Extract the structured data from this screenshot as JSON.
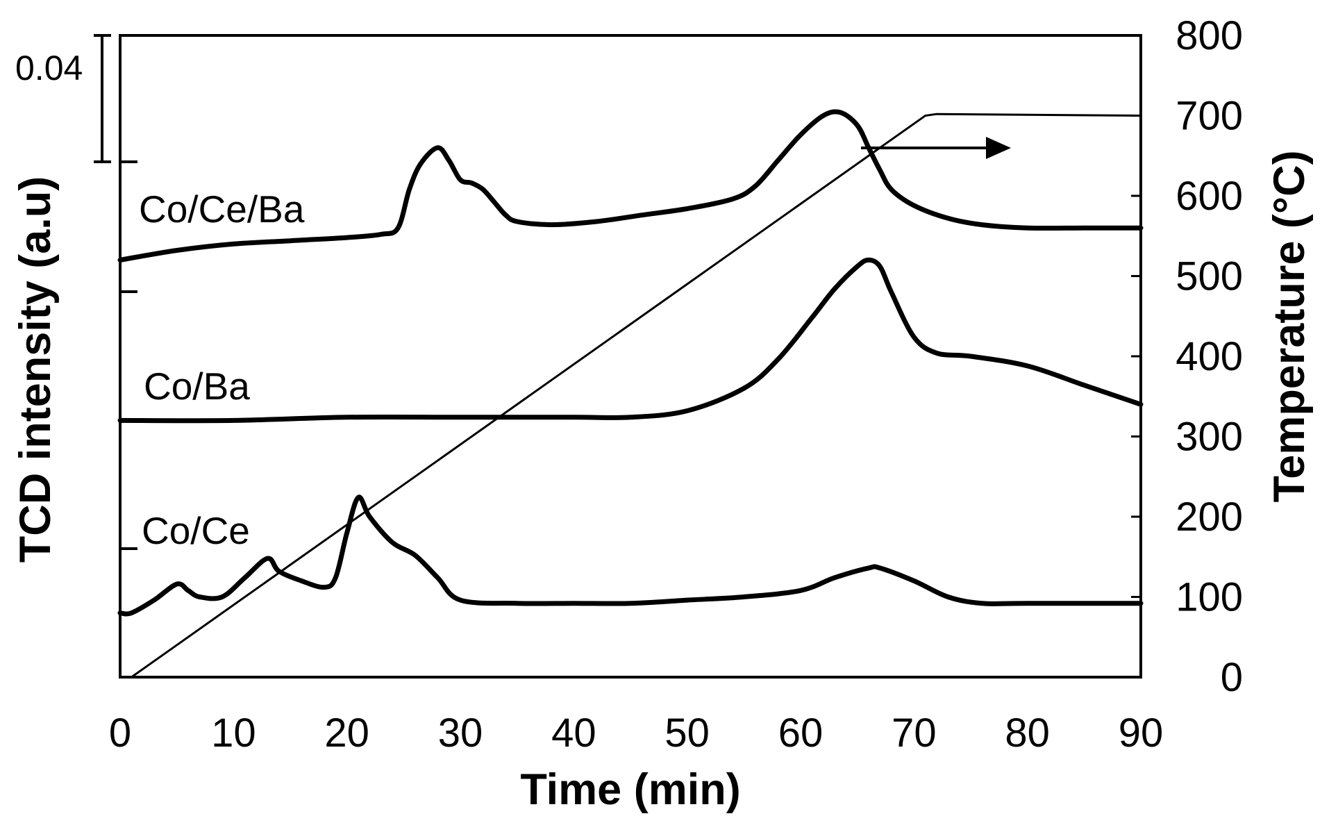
{
  "chart_data": {
    "type": "line",
    "title": "",
    "xlabel": "Time (min)",
    "ylabel_left": "TCD intensity (a.u)",
    "ylabel_right": "Temperature (°C)",
    "xlim": [
      0,
      90
    ],
    "x_ticks": [
      "0",
      "10",
      "20",
      "30",
      "40",
      "50",
      "60",
      "70",
      "80",
      "90"
    ],
    "y_right_lim": [
      0,
      800
    ],
    "y_right_ticks": [
      "0",
      "100",
      "200",
      "300",
      "400",
      "500",
      "600",
      "700",
      "800"
    ],
    "scale_bar_label": "0.04",
    "scale_bar_value": 0.04,
    "y_left_lim": [
      0,
      0.2
    ],
    "grid": false,
    "temperature_series": {
      "name": "Temperature",
      "x": [
        1,
        5,
        71,
        72,
        90
      ],
      "y": [
        0,
        40,
        700,
        702,
        700
      ]
    },
    "series": [
      {
        "name": "Co/Ce/Ba",
        "label": "Co/Ce/Ba",
        "x": [
          0,
          5,
          10,
          15,
          20,
          23,
          24.5,
          25.5,
          26.5,
          28,
          29,
          30,
          31,
          32,
          33,
          34,
          35,
          38,
          42,
          46,
          50,
          54,
          56,
          58,
          60,
          62,
          63.5,
          65,
          66,
          67,
          68,
          70,
          73,
          76,
          80,
          85,
          90
        ],
        "y": [
          0.13,
          0.133,
          0.135,
          0.136,
          0.137,
          0.138,
          0.14,
          0.152,
          0.16,
          0.165,
          0.161,
          0.155,
          0.154,
          0.152,
          0.148,
          0.144,
          0.142,
          0.141,
          0.142,
          0.144,
          0.146,
          0.149,
          0.153,
          0.161,
          0.169,
          0.175,
          0.176,
          0.172,
          0.165,
          0.158,
          0.152,
          0.147,
          0.143,
          0.141,
          0.14,
          0.14,
          0.14
        ]
      },
      {
        "name": "Co/Ba",
        "label": "Co/Ba",
        "x": [
          0,
          10,
          20,
          30,
          40,
          45,
          50,
          55,
          58,
          61,
          63,
          65,
          66,
          67,
          68,
          70,
          72,
          75,
          80,
          85,
          90
        ],
        "y": [
          0.08,
          0.08,
          0.081,
          0.081,
          0.081,
          0.081,
          0.083,
          0.09,
          0.099,
          0.112,
          0.121,
          0.128,
          0.13,
          0.128,
          0.12,
          0.106,
          0.101,
          0.1,
          0.097,
          0.091,
          0.085
        ]
      },
      {
        "name": "Co/Ce",
        "label": "Co/Ce",
        "x": [
          0,
          1,
          3,
          5,
          6,
          7,
          9,
          11,
          13,
          14,
          16,
          18,
          19,
          20,
          21,
          22,
          24,
          26,
          28,
          30,
          35,
          40,
          45,
          50,
          55,
          60,
          63,
          66,
          67,
          70,
          73,
          76,
          80,
          90
        ],
        "y": [
          0.02,
          0.02,
          0.024,
          0.029,
          0.027,
          0.025,
          0.025,
          0.031,
          0.037,
          0.033,
          0.03,
          0.028,
          0.031,
          0.045,
          0.056,
          0.05,
          0.042,
          0.038,
          0.031,
          0.024,
          0.023,
          0.023,
          0.023,
          0.024,
          0.025,
          0.027,
          0.031,
          0.034,
          0.034,
          0.03,
          0.025,
          0.023,
          0.023,
          0.023
        ]
      }
    ],
    "annotations": [
      {
        "type": "arrow",
        "direction": "right",
        "points_to": "right-axis"
      }
    ]
  }
}
